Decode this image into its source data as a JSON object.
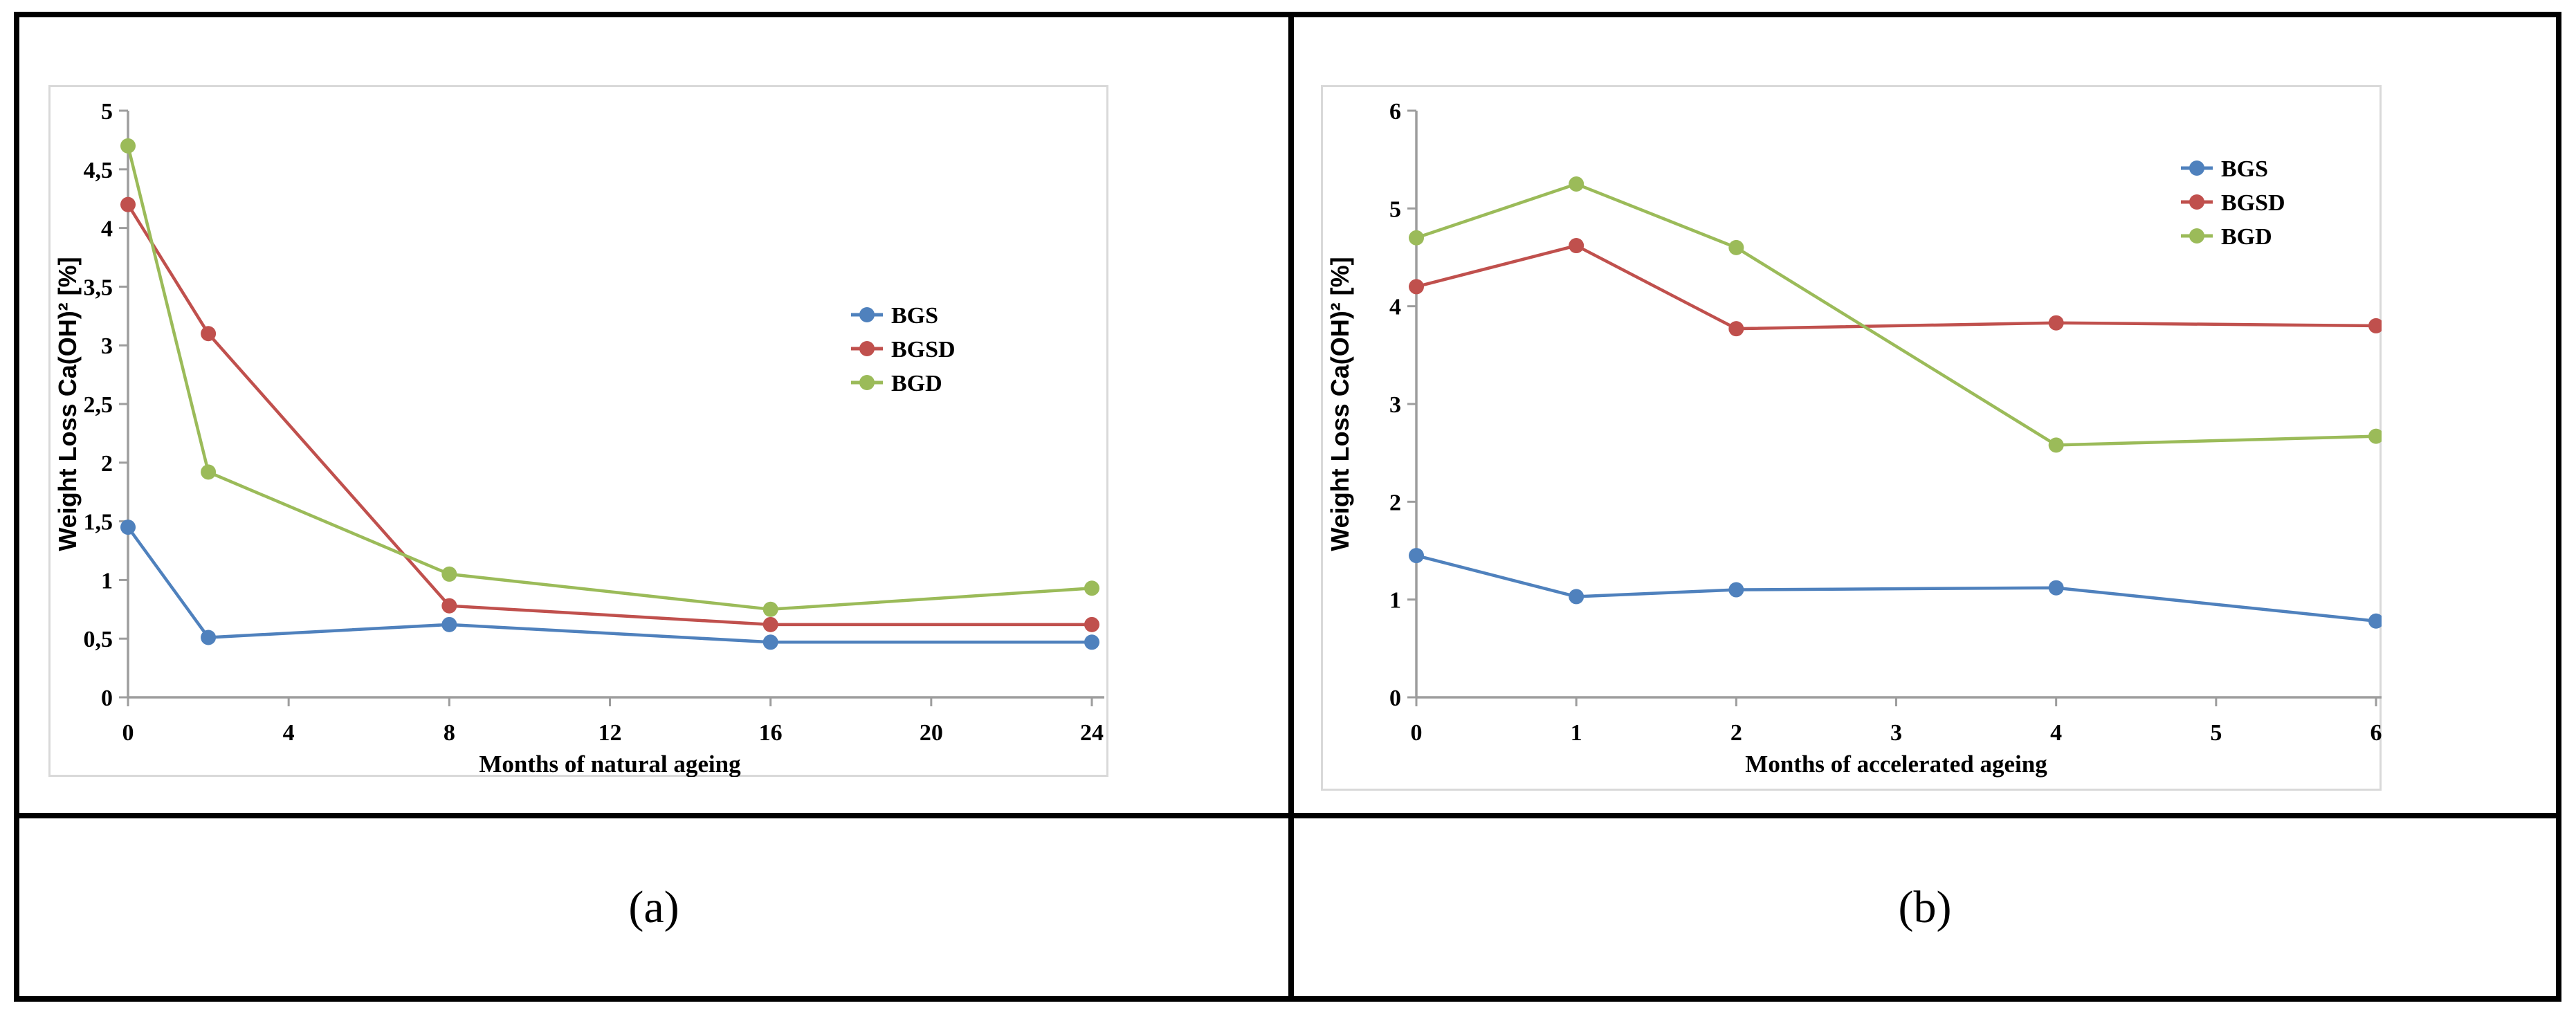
{
  "figure": {
    "captions": {
      "left": "(a)",
      "right": "(b)"
    }
  },
  "colors": {
    "bgs": "#4F81BD",
    "bgsd": "#C0504D",
    "bgd": "#9BBB59",
    "axis": "#9D9D9D",
    "panel_border": "#D9D9D9",
    "text": "#000000"
  },
  "chart_data": [
    {
      "type": "line",
      "panel": "a",
      "xlabel": "Months of natural ageing",
      "ylabel": "Weight Loss Ca(OH)² [%]",
      "x": [
        0,
        2,
        8,
        16,
        24
      ],
      "xticks": [
        0,
        4,
        8,
        12,
        16,
        20,
        24
      ],
      "xlim": [
        0,
        24
      ],
      "ylim": [
        0,
        5
      ],
      "ytick_step": 0.5,
      "ytick_labels": [
        "0",
        "0,5",
        "1",
        "1,5",
        "2",
        "2,5",
        "3",
        "3,5",
        "4",
        "4,5",
        "5"
      ],
      "grid": false,
      "legend_position": "middle-right",
      "legend_entries": [
        "BGS",
        "BGSD",
        "BGD"
      ],
      "series": [
        {
          "name": "BGS",
          "color_key": "bgs",
          "values": [
            1.45,
            0.51,
            0.62,
            0.47,
            0.47
          ]
        },
        {
          "name": "BGSD",
          "color_key": "bgsd",
          "values": [
            4.2,
            3.1,
            0.78,
            0.62,
            0.62
          ]
        },
        {
          "name": "BGD",
          "color_key": "bgd",
          "values": [
            4.7,
            1.92,
            1.05,
            0.75,
            0.93
          ]
        }
      ]
    },
    {
      "type": "line",
      "panel": "b",
      "xlabel": "Months of accelerated ageing",
      "ylabel": "Weight Loss Ca(OH)² [%]",
      "x": [
        0,
        1,
        2,
        4,
        6
      ],
      "xticks": [
        0,
        1,
        2,
        3,
        4,
        5,
        6
      ],
      "xlim": [
        0,
        6
      ],
      "ylim": [
        0,
        6
      ],
      "ytick_step": 1,
      "ytick_labels": [
        "0",
        "1",
        "2",
        "3",
        "4",
        "5",
        "6"
      ],
      "grid": false,
      "legend_position": "top-right",
      "legend_entries": [
        "BGS",
        "BGSD",
        "BGD"
      ],
      "series": [
        {
          "name": "BGS",
          "color_key": "bgs",
          "values": [
            1.45,
            1.03,
            1.1,
            1.12,
            0.78
          ]
        },
        {
          "name": "BGSD",
          "color_key": "bgsd",
          "values": [
            4.2,
            4.62,
            3.77,
            3.83,
            3.8
          ]
        },
        {
          "name": "BGD",
          "color_key": "bgd",
          "values": [
            4.7,
            5.25,
            4.6,
            2.58,
            2.67
          ]
        }
      ]
    }
  ]
}
